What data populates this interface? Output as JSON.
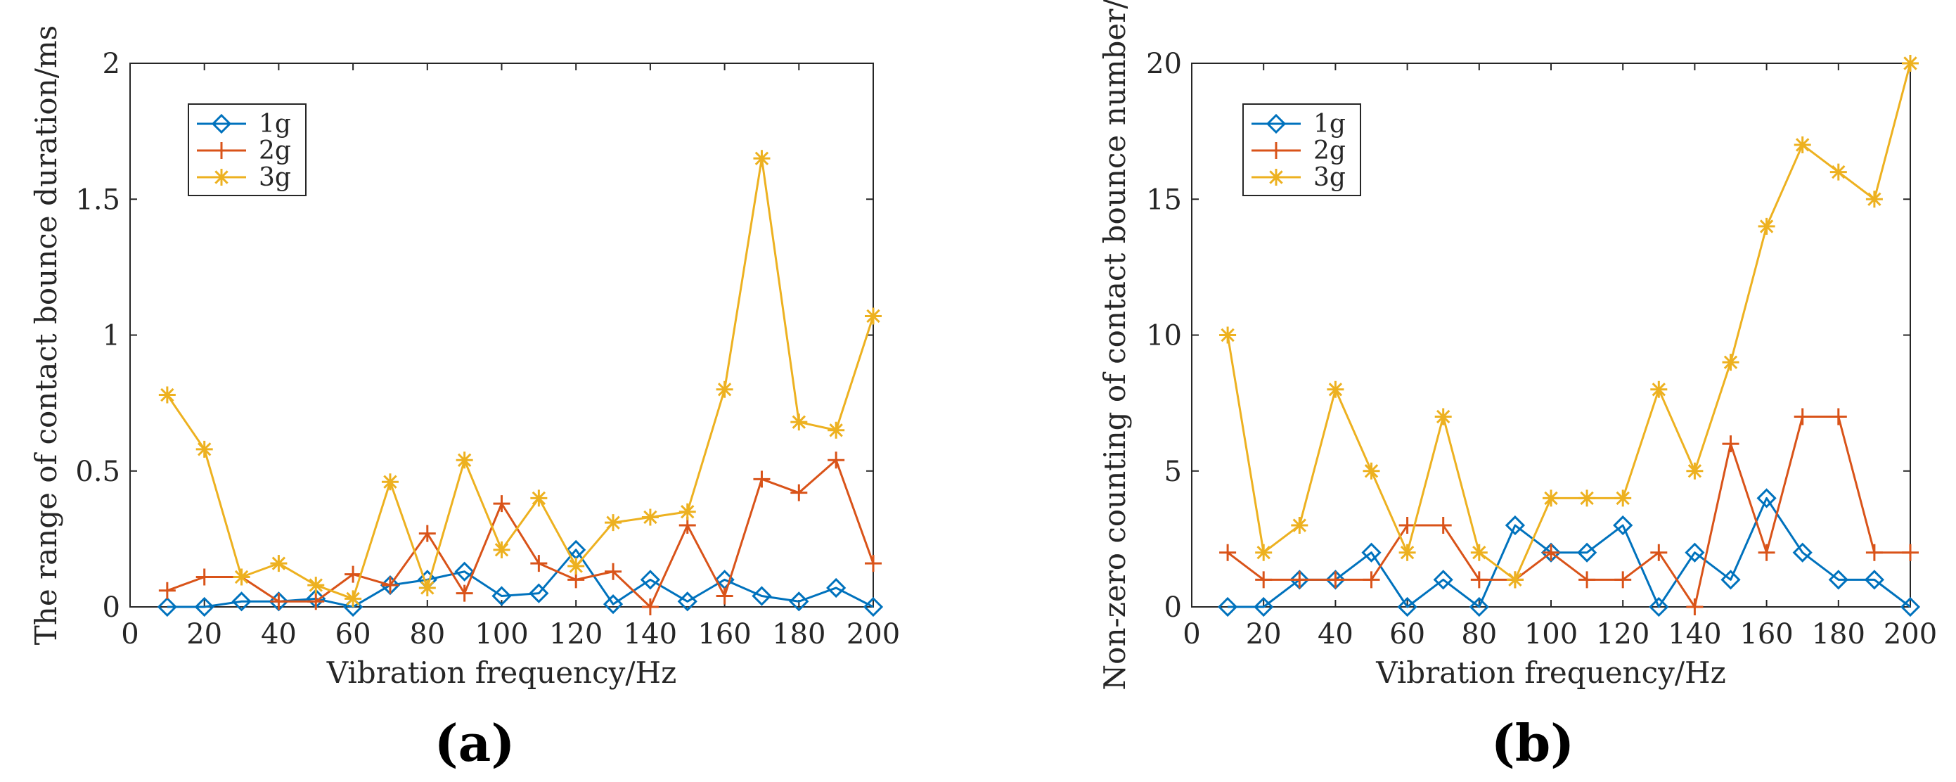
{
  "panel_labels": [
    "(a)",
    "(b)"
  ],
  "chart_data": [
    {
      "type": "line",
      "panel": "(a)",
      "title": "",
      "xlabel": "Vibration frequency/Hz",
      "ylabel": "The range of contact bounce duration/ms",
      "xlim": [
        0,
        200
      ],
      "ylim": [
        0,
        2
      ],
      "xticks": [
        0,
        20,
        40,
        60,
        80,
        100,
        120,
        140,
        160,
        180,
        200
      ],
      "yticks": [
        0,
        0.5,
        1,
        1.5,
        2
      ],
      "ytick_labels": [
        "0",
        "0.5",
        "1",
        "1.5",
        "2"
      ],
      "grid": false,
      "legend_position": "top-left",
      "x": [
        10,
        20,
        30,
        40,
        50,
        60,
        70,
        80,
        90,
        100,
        110,
        120,
        130,
        140,
        150,
        160,
        170,
        180,
        190,
        200
      ],
      "series": [
        {
          "name": "1g",
          "color": "#0072BD",
          "marker": "diamond",
          "values": [
            0,
            0,
            0.02,
            0.02,
            0.03,
            0,
            0.08,
            0.1,
            0.13,
            0.04,
            0.05,
            0.21,
            0.01,
            0.1,
            0.02,
            0.1,
            0.04,
            0.02,
            0.07,
            0
          ]
        },
        {
          "name": "2g",
          "color": "#D95319",
          "marker": "plus",
          "values": [
            0.06,
            0.11,
            0.11,
            0.02,
            0.02,
            0.12,
            0.08,
            0.27,
            0.05,
            0.38,
            0.16,
            0.1,
            0.13,
            0,
            0.3,
            0.04,
            0.47,
            0.42,
            0.54,
            0.16
          ]
        },
        {
          "name": "3g",
          "color": "#EDB120",
          "marker": "asterisk",
          "values": [
            0.78,
            0.58,
            0.11,
            0.16,
            0.08,
            0.03,
            0.46,
            0.07,
            0.54,
            0.21,
            0.4,
            0.15,
            0.31,
            0.33,
            0.35,
            0.8,
            1.65,
            0.68,
            0.65,
            1.07
          ]
        }
      ]
    },
    {
      "type": "line",
      "panel": "(b)",
      "title": "",
      "xlabel": "Vibration frequency/Hz",
      "ylabel": "Non-zero counting of contact bounce number/n",
      "xlim": [
        0,
        200
      ],
      "ylim": [
        0,
        20
      ],
      "xticks": [
        0,
        20,
        40,
        60,
        80,
        100,
        120,
        140,
        160,
        180,
        200
      ],
      "yticks": [
        0,
        5,
        10,
        15,
        20
      ],
      "ytick_labels": [
        "0",
        "5",
        "10",
        "15",
        "20"
      ],
      "grid": false,
      "legend_position": "top-left",
      "x": [
        10,
        20,
        30,
        40,
        50,
        60,
        70,
        80,
        90,
        100,
        110,
        120,
        130,
        140,
        150,
        160,
        170,
        180,
        190,
        200
      ],
      "series": [
        {
          "name": "1g",
          "color": "#0072BD",
          "marker": "diamond",
          "values": [
            0,
            0,
            1,
            1,
            2,
            0,
            1,
            0,
            3,
            2,
            2,
            3,
            0,
            2,
            1,
            4,
            2,
            1,
            1,
            0
          ]
        },
        {
          "name": "2g",
          "color": "#D95319",
          "marker": "plus",
          "values": [
            2,
            1,
            1,
            1,
            1,
            3,
            3,
            1,
            1,
            2,
            1,
            1,
            2,
            0,
            6,
            2,
            7,
            7,
            2,
            2
          ]
        },
        {
          "name": "3g",
          "color": "#EDB120",
          "marker": "asterisk",
          "values": [
            10,
            2,
            3,
            8,
            5,
            2,
            7,
            2,
            1,
            4,
            4,
            4,
            8,
            5,
            9,
            14,
            17,
            16,
            15,
            20
          ]
        }
      ]
    }
  ]
}
